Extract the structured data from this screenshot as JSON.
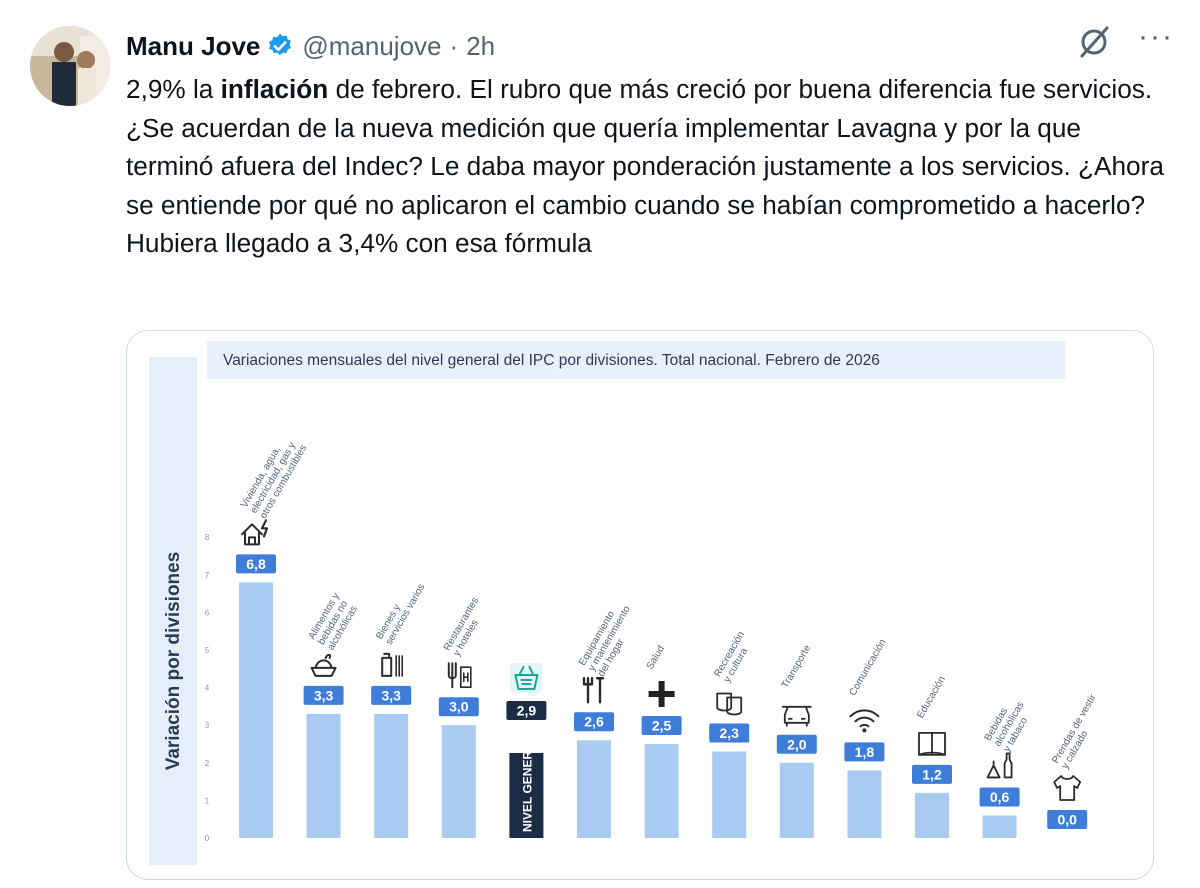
{
  "tweet": {
    "display_name": "Manu Jove",
    "handle": "@manujove",
    "separator": "·",
    "time": "2h",
    "text_part1": "2,9% la ",
    "text_bold": "inflación",
    "text_part2": " de febrero. El rubro que más creció por buena diferencia fue servicios. ¿Se acuerdan de la nueva medición que quería implementar Lavagna y por la que terminó afuera del Indec? Le daba mayor ponderación justamente a los servicios. ¿Ahora se entiende por qué no aplicaron el cambio cuando se habían comprometido a hacerlo? Hubiera llegado a 3,4% con esa fórmula",
    "more_label": "···",
    "verified_icon": "verified-badge-icon",
    "grok_icon": "grok-icon"
  },
  "colors": {
    "verified": "#1d9bf0",
    "bar": "#a9cbf2",
    "highlight_bar": "#1c2c44",
    "label_box": "#3f7ed8",
    "title_band": "#e9f0fb",
    "axis_band": "#e6eefa",
    "axis_title": "#2b3a55"
  },
  "chart_data": {
    "type": "bar",
    "title": "Variaciones mensuales del nivel general del IPC por divisiones. Total nacional. Febrero de 2026",
    "ylabel": "Variación por divisiones",
    "ylim": [
      0,
      8
    ],
    "yticks": [
      "0",
      "1",
      "2",
      "3",
      "4",
      "5",
      "6",
      "7",
      "8"
    ],
    "categories": [
      "Vivienda, agua, electricidad, gas y otros combustibles",
      "Alimentos y bebidas no alcohólicas",
      "Bienes y servicios varios",
      "Restaurantes y hoteles",
      "NIVEL GENERAL",
      "Equipamiento y mantenimiento del hogar",
      "Salud",
      "Recreación y cultura",
      "Transporte",
      "Comunicación",
      "Educación",
      "Bebidas alcohólicas y tabaco",
      "Prendas de vestir y calzado"
    ],
    "values": [
      6.8,
      3.3,
      3.3,
      3.0,
      2.9,
      2.6,
      2.5,
      2.3,
      2.0,
      1.8,
      1.2,
      0.6,
      0.0
    ],
    "value_labels": [
      "6,8",
      "3,3",
      "3,3",
      "3,0",
      "2,9",
      "2,6",
      "2,5",
      "2,3",
      "2,0",
      "1,8",
      "1,2",
      "0,6",
      "0,0"
    ],
    "category_lines": [
      [
        "Vivienda, agua,",
        "electricidad, gas y",
        "otros combustibles"
      ],
      [
        "Alimentos y",
        "bebidas no",
        "alcohólicas"
      ],
      [
        "Bienes y",
        "servicios varios"
      ],
      [
        "Restaurantes",
        "y hoteles"
      ],
      [],
      [
        "Equipamiento",
        "y mantenimiento",
        "del hogar"
      ],
      [
        "Salud"
      ],
      [
        "Recreación",
        "y cultura"
      ],
      [
        "Transporte"
      ],
      [
        "Comunicación"
      ],
      [
        "Educación"
      ],
      [
        "Bebidas",
        "alcohólicas",
        "y tabaco"
      ],
      [
        "Prendas de vestir",
        "y calzado"
      ]
    ],
    "icons": [
      "house-bolt-icon",
      "food-bowl-icon",
      "bottle-comb-icon",
      "fork-hotel-icon",
      "basket-icon",
      "tools-icon",
      "plus-health-icon",
      "theater-masks-icon",
      "car-icon",
      "wifi-icon",
      "book-icon",
      "wine-bottle-icon",
      "tshirt-icon"
    ],
    "highlight_index": 4,
    "highlight_inner_label": "NIVEL GENERAL",
    "grid": false,
    "legend": "none"
  }
}
